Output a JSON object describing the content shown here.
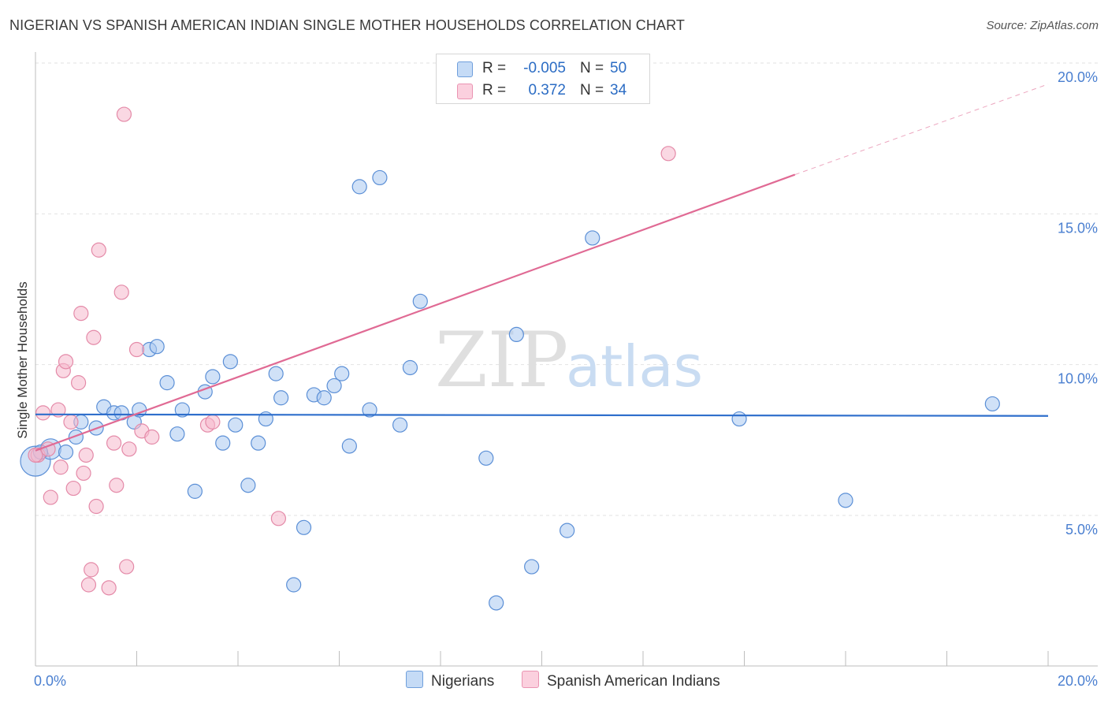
{
  "title": "NIGERIAN VS SPANISH AMERICAN INDIAN SINGLE MOTHER HOUSEHOLDS CORRELATION CHART",
  "source": "Source: ZipAtlas.com",
  "watermark": {
    "zip": "ZIP",
    "atlas": "atlas"
  },
  "legend": {
    "rows": [
      {
        "r_label": "R =",
        "r_value": "-0.005",
        "n_label": "N =",
        "n_value": "50",
        "color": "#a9c8f0"
      },
      {
        "r_label": "R =",
        "r_value": "0.372",
        "n_label": "N =",
        "n_value": "34",
        "color": "#f6b8cc"
      }
    ]
  },
  "bottom_legend": [
    {
      "label": "Nigerians",
      "color": "#a9c8f0"
    },
    {
      "label": "Spanish American Indians",
      "color": "#f6b8cc"
    }
  ],
  "chart_data": {
    "type": "scatter",
    "ylabel": "Single Mother Households",
    "xlabel": "",
    "xlim": [
      0,
      20
    ],
    "ylim": [
      0,
      20.5
    ],
    "x_tick_labels": [
      "0.0%",
      "20.0%"
    ],
    "y_ticks": [
      {
        "value": 5,
        "label": "5.0%"
      },
      {
        "value": 10,
        "label": "10.0%"
      },
      {
        "value": 15,
        "label": "15.0%"
      },
      {
        "value": 20,
        "label": "20.0%"
      }
    ],
    "grid": true,
    "series": [
      {
        "name": "Nigerians",
        "color": "#a9c8f0",
        "stroke": "#5b8fd6",
        "trend": {
          "x0": 0,
          "y0": 8.35,
          "x1": 20,
          "y1": 8.3,
          "color": "#2f6fcc"
        },
        "points": [
          [
            0.0,
            6.8
          ],
          [
            0.3,
            7.2
          ],
          [
            0.6,
            7.1
          ],
          [
            0.8,
            7.6
          ],
          [
            0.9,
            8.1
          ],
          [
            1.2,
            7.9
          ],
          [
            1.35,
            8.6
          ],
          [
            1.55,
            8.4
          ],
          [
            1.7,
            8.4
          ],
          [
            1.95,
            8.1
          ],
          [
            2.05,
            8.5
          ],
          [
            2.25,
            10.5
          ],
          [
            2.4,
            10.6
          ],
          [
            2.6,
            9.4
          ],
          [
            2.8,
            7.7
          ],
          [
            2.9,
            8.5
          ],
          [
            3.15,
            5.8
          ],
          [
            3.35,
            9.1
          ],
          [
            3.5,
            9.6
          ],
          [
            3.7,
            7.4
          ],
          [
            3.85,
            10.1
          ],
          [
            3.95,
            8.0
          ],
          [
            4.2,
            6.0
          ],
          [
            4.4,
            7.4
          ],
          [
            4.55,
            8.2
          ],
          [
            4.75,
            9.7
          ],
          [
            4.85,
            8.9
          ],
          [
            5.1,
            2.7
          ],
          [
            5.3,
            4.6
          ],
          [
            5.5,
            9.0
          ],
          [
            5.7,
            8.9
          ],
          [
            5.9,
            9.3
          ],
          [
            6.05,
            9.7
          ],
          [
            6.2,
            7.3
          ],
          [
            6.4,
            15.9
          ],
          [
            6.6,
            8.5
          ],
          [
            6.8,
            16.2
          ],
          [
            7.2,
            8.0
          ],
          [
            7.4,
            9.9
          ],
          [
            7.6,
            12.1
          ],
          [
            8.9,
            6.9
          ],
          [
            9.1,
            2.1
          ],
          [
            9.5,
            11.0
          ],
          [
            9.8,
            3.3
          ],
          [
            10.5,
            4.5
          ],
          [
            11.0,
            14.2
          ],
          [
            13.9,
            8.2
          ],
          [
            16.0,
            5.5
          ],
          [
            18.9,
            8.7
          ],
          [
            0.1,
            7.1
          ]
        ]
      },
      {
        "name": "Spanish American Indians",
        "color": "#f6b8cc",
        "stroke": "#e48aa8",
        "trend": {
          "x0": 0,
          "y0": 7.15,
          "x1": 15.0,
          "y1": 16.3,
          "dash_x1": 20,
          "dash_y1": 19.3,
          "color": "#e06a94"
        },
        "points": [
          [
            0.05,
            7.0
          ],
          [
            0.15,
            8.4
          ],
          [
            0.25,
            7.2
          ],
          [
            0.3,
            5.6
          ],
          [
            0.45,
            8.5
          ],
          [
            0.5,
            6.6
          ],
          [
            0.55,
            9.8
          ],
          [
            0.6,
            10.1
          ],
          [
            0.7,
            8.1
          ],
          [
            0.75,
            5.9
          ],
          [
            0.85,
            9.4
          ],
          [
            0.9,
            11.7
          ],
          [
            0.95,
            6.4
          ],
          [
            1.0,
            7.0
          ],
          [
            1.05,
            2.7
          ],
          [
            1.1,
            3.2
          ],
          [
            1.15,
            10.9
          ],
          [
            1.2,
            5.3
          ],
          [
            1.25,
            13.8
          ],
          [
            1.45,
            2.6
          ],
          [
            1.55,
            7.4
          ],
          [
            1.6,
            6.0
          ],
          [
            1.7,
            12.4
          ],
          [
            1.75,
            18.3
          ],
          [
            1.8,
            3.3
          ],
          [
            1.85,
            7.2
          ],
          [
            2.0,
            10.5
          ],
          [
            2.1,
            7.8
          ],
          [
            2.3,
            7.6
          ],
          [
            3.4,
            8.0
          ],
          [
            3.5,
            8.1
          ],
          [
            4.8,
            4.9
          ],
          [
            12.5,
            17.0
          ],
          [
            0.0,
            7.0
          ]
        ]
      }
    ]
  }
}
